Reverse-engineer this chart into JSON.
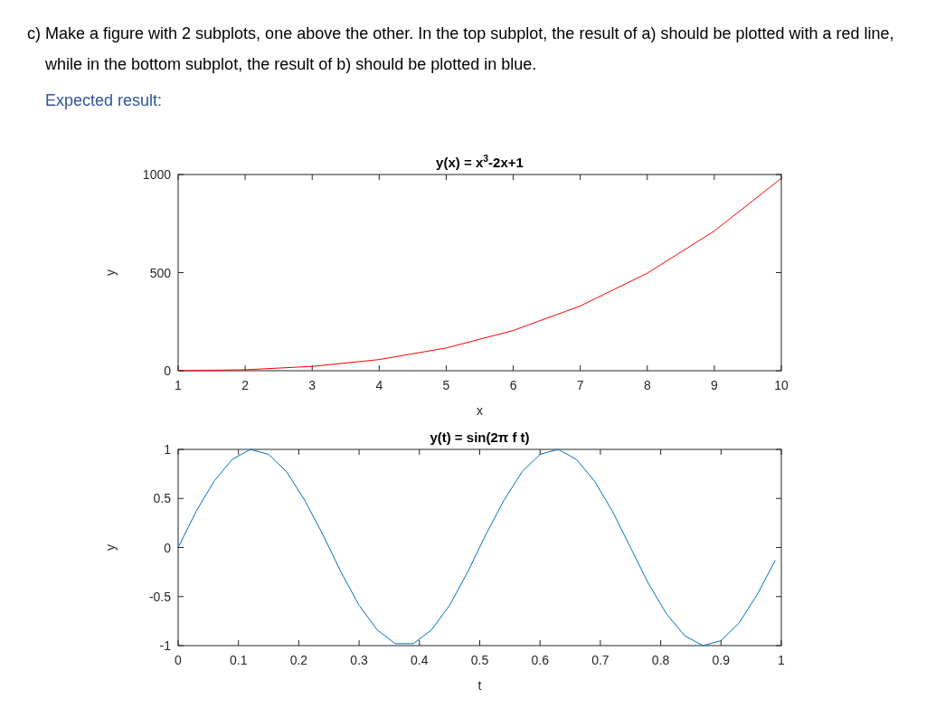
{
  "chart_data": [
    {
      "type": "line",
      "title": "y(x) = x$^{3}$-2x+1",
      "xlabel": "x",
      "ylabel": "y",
      "x": [
        1,
        2,
        3,
        4,
        5,
        6,
        7,
        8,
        9,
        10
      ],
      "series": [
        {
          "color": "#ff0000",
          "values": [
            0,
            5,
            22,
            57,
            116,
            205,
            330,
            497,
            712,
            981
          ]
        }
      ],
      "xlim": [
        1,
        10
      ],
      "xticks": [
        1,
        2,
        3,
        4,
        5,
        6,
        7,
        8,
        9,
        10
      ],
      "ylim": [
        0,
        1000
      ],
      "yticks": [
        0,
        500,
        1000
      ],
      "annotations": [
        "c) Make a figure with 2 subplots, one above the other. In the top subplot, the result of a) should be plotted with a red line, while in the bottom subplot, the result of b) should be plotted in blue.",
        "Expected result:"
      ]
    },
    {
      "type": "line",
      "title": "y(t) = sin(2π f t)",
      "xlabel": "t",
      "ylabel": "y",
      "x": [
        0,
        0.03,
        0.06,
        0.09,
        0.12,
        0.15,
        0.18,
        0.21,
        0.24,
        0.27,
        0.3,
        0.33,
        0.36,
        0.39,
        0.42,
        0.45,
        0.48,
        0.51,
        0.54,
        0.57,
        0.6,
        0.63,
        0.66,
        0.69,
        0.72,
        0.75,
        0.78,
        0.81,
        0.84,
        0.87,
        0.9,
        0.93,
        0.96,
        0.99
      ],
      "series": [
        {
          "color": "#0072bd",
          "values": [
            0,
            0.37,
            0.68,
            0.9,
            1,
            0.95,
            0.77,
            0.48,
            0.13,
            -0.25,
            -0.59,
            -0.84,
            -0.98,
            -0.98,
            -0.84,
            -0.59,
            -0.25,
            0.13,
            0.48,
            0.77,
            0.95,
            1,
            0.9,
            0.68,
            0.37,
            0,
            -0.37,
            -0.68,
            -0.9,
            -1,
            -0.95,
            -0.77,
            -0.48,
            -0.13
          ]
        }
      ],
      "xlim": [
        0,
        1
      ],
      "xticks": [
        0,
        0.1,
        0.2,
        0.3,
        0.4,
        0.5,
        0.6,
        0.7,
        0.8,
        0.9,
        1
      ],
      "ylim": [
        -1,
        1
      ],
      "yticks": [
        -1,
        -0.5,
        0,
        0.5,
        1
      ]
    }
  ]
}
